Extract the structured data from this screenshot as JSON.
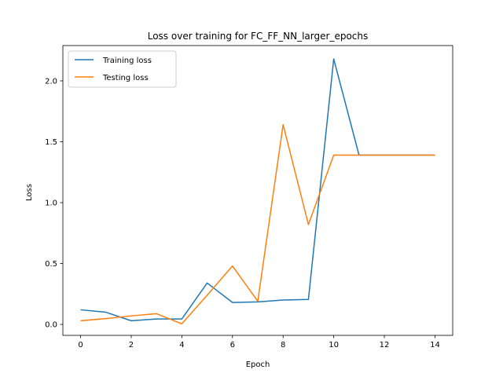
{
  "chart_data": {
    "type": "line",
    "title": "Loss over training for FC_FF_NN_larger_epochs",
    "xlabel": "Epoch",
    "ylabel": "Loss",
    "xlim": [
      -0.7,
      14.7
    ],
    "ylim": [
      -0.09,
      2.29
    ],
    "xticks": [
      0,
      2,
      4,
      6,
      8,
      10,
      12,
      14
    ],
    "xtick_labels": [
      "0",
      "2",
      "4",
      "6",
      "8",
      "10",
      "12",
      "14"
    ],
    "yticks": [
      0.0,
      0.5,
      1.0,
      1.5,
      2.0
    ],
    "ytick_labels": [
      "0.0",
      "0.5",
      "1.0",
      "1.5",
      "2.0"
    ],
    "grid": false,
    "legend_position": "top-left",
    "x": [
      0,
      1,
      2,
      3,
      4,
      5,
      6,
      7,
      8,
      9,
      10,
      11,
      12,
      13,
      14
    ],
    "series": [
      {
        "name": "Training loss",
        "color": "#1f77b4",
        "values": [
          0.12,
          0.1,
          0.03,
          0.045,
          0.045,
          0.34,
          0.18,
          0.185,
          0.2,
          0.205,
          2.18,
          1.39,
          1.39,
          1.39,
          1.39
        ]
      },
      {
        "name": "Testing loss",
        "color": "#ff7f0e",
        "values": [
          0.03,
          0.048,
          0.07,
          0.088,
          0.005,
          0.24,
          0.48,
          0.19,
          1.64,
          0.82,
          1.39,
          1.39,
          1.39,
          1.39,
          1.39
        ]
      }
    ]
  }
}
